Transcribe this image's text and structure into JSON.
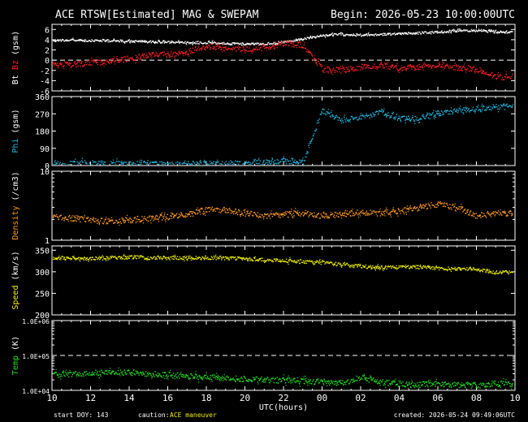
{
  "header": {
    "title": "ACE RTSW[Estimated] MAG & SWEPAM",
    "begin": "Begin: 2026-05-23 10:00:00UTC"
  },
  "footer": {
    "start_doy": "start DOY: 143",
    "caution_label": "caution:",
    "caution_value": "ACE maneuver",
    "created": "created: 2026-05-24 09:49:06UTC"
  },
  "colors": {
    "bt": "#ffffff",
    "bz": "#ff2020",
    "phi": "#22b8e0",
    "density": "#ff9a20",
    "speed": "#f0f000",
    "temp": "#22dd22"
  },
  "chart_data": [
    {
      "type": "scatter",
      "id": "mag",
      "ylabel_parts": [
        "Bt",
        "Bz",
        "(gsm)"
      ],
      "yticks": [
        -6,
        -4,
        -2,
        0,
        2,
        4,
        6
      ],
      "ylim": [
        -6,
        7
      ],
      "x": [
        10,
        11,
        12,
        13,
        14,
        15,
        16,
        17,
        18,
        19,
        20,
        21,
        22,
        23,
        24,
        25,
        26,
        27,
        28,
        29,
        30,
        31,
        32,
        33
      ],
      "series": [
        {
          "key": "Bt",
          "values": [
            4.0,
            4.0,
            3.9,
            3.9,
            3.8,
            3.7,
            3.6,
            3.5,
            3.5,
            3.4,
            3.3,
            3.3,
            3.6,
            4.2,
            4.9,
            5.2,
            5.0,
            5.1,
            5.3,
            5.4,
            5.6,
            5.8,
            5.9,
            5.6
          ]
        },
        {
          "key": "Bz",
          "values": [
            -0.6,
            -0.8,
            -0.4,
            -0.2,
            0.4,
            1.0,
            1.2,
            1.6,
            2.8,
            2.5,
            2.2,
            2.6,
            3.4,
            3.0,
            -1.6,
            -1.9,
            -1.2,
            -0.8,
            -1.5,
            -1.2,
            -0.8,
            -1.4,
            -1.6,
            -3.2
          ]
        }
      ],
      "guides": [
        0
      ]
    },
    {
      "type": "scatter",
      "id": "phi",
      "ylabel_parts": [
        "Phi",
        "(gsm)"
      ],
      "yticks": [
        0,
        90,
        180,
        270,
        360
      ],
      "ylim": [
        0,
        360
      ],
      "x": [
        10,
        11,
        12,
        13,
        14,
        15,
        16,
        17,
        18,
        19,
        20,
        21,
        22,
        23,
        24,
        25,
        26,
        27,
        28,
        29,
        30,
        31,
        32,
        33
      ],
      "series": [
        {
          "key": "Phi",
          "values": [
            10,
            12,
            14,
            12,
            10,
            10,
            8,
            10,
            12,
            14,
            18,
            20,
            28,
            22,
            290,
            240,
            255,
            280,
            250,
            245,
            275,
            290,
            300,
            310
          ]
        }
      ],
      "guides": []
    },
    {
      "type": "scatter",
      "id": "density",
      "ylabel_parts": [
        "Density",
        "(/cm3)"
      ],
      "yticks": [
        1,
        10
      ],
      "yscale": "log",
      "ylim": [
        1,
        10
      ],
      "x": [
        10,
        11,
        12,
        13,
        14,
        15,
        16,
        17,
        18,
        19,
        20,
        21,
        22,
        23,
        24,
        25,
        26,
        27,
        28,
        29,
        30,
        31,
        32,
        33
      ],
      "series": [
        {
          "key": "Density",
          "values": [
            2.2,
            2.1,
            2.0,
            1.9,
            2.0,
            2.1,
            2.2,
            2.4,
            2.8,
            2.8,
            2.5,
            2.3,
            2.4,
            2.5,
            2.3,
            2.4,
            2.6,
            2.5,
            2.7,
            3.0,
            3.4,
            3.0,
            2.3,
            2.5
          ]
        }
      ],
      "guides": []
    },
    {
      "type": "scatter",
      "id": "speed",
      "ylabel_parts": [
        "Speed",
        "(km/s)"
      ],
      "yticks": [
        200,
        250,
        300,
        350
      ],
      "ylim": [
        200,
        360
      ],
      "x": [
        10,
        11,
        12,
        13,
        14,
        15,
        16,
        17,
        18,
        19,
        20,
        21,
        22,
        23,
        24,
        25,
        26,
        27,
        28,
        29,
        30,
        31,
        32,
        33
      ],
      "series": [
        {
          "key": "Speed",
          "values": [
            334,
            333,
            332,
            333,
            335,
            334,
            333,
            334,
            334,
            333,
            331,
            329,
            327,
            325,
            322,
            318,
            314,
            310,
            312,
            312,
            309,
            308,
            306,
            300
          ]
        }
      ],
      "guides": []
    },
    {
      "type": "scatter",
      "id": "temp",
      "ylabel_parts": [
        "Temp",
        "(K)"
      ],
      "yticks": [
        "1.0E+04",
        "1.0E+05",
        "1.0E+06"
      ],
      "ytick_values": [
        10000,
        100000,
        1000000
      ],
      "yscale": "log",
      "ylim": [
        10000,
        1000000
      ],
      "x": [
        10,
        11,
        12,
        13,
        14,
        15,
        16,
        17,
        18,
        19,
        20,
        21,
        22,
        23,
        24,
        25,
        26,
        27,
        28,
        29,
        30,
        31,
        32,
        33
      ],
      "series": [
        {
          "key": "Temp",
          "values": [
            28000,
            30000,
            32000,
            34000,
            33000,
            31000,
            29000,
            26000,
            25000,
            23000,
            22000,
            21000,
            20000,
            19000,
            18000,
            17000,
            24000,
            18000,
            16000,
            15000,
            16000,
            15000,
            14000,
            16000
          ]
        }
      ],
      "guides": [
        100000
      ]
    }
  ],
  "xaxis": {
    "ticks": [
      "10",
      "12",
      "14",
      "16",
      "18",
      "20",
      "22",
      "00",
      "02",
      "04",
      "06",
      "08",
      "10"
    ],
    "tick_values": [
      10,
      12,
      14,
      16,
      18,
      20,
      22,
      24,
      26,
      28,
      30,
      32,
      34
    ],
    "xlim": [
      10,
      34
    ],
    "xlabel": "UTC(hours)"
  }
}
